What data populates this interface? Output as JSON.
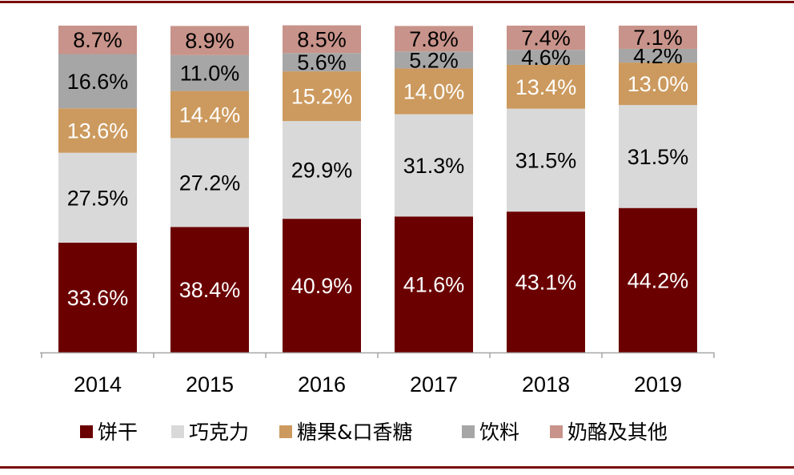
{
  "chart_data": {
    "type": "bar",
    "stacked": true,
    "categories": [
      "2014",
      "2015",
      "2016",
      "2017",
      "2018",
      "2019"
    ],
    "ylim": [
      0,
      100
    ],
    "value_suffix": "%",
    "series": [
      {
        "name": "饼干",
        "color": "#6b0000",
        "label_color": "#ffffff",
        "values": [
          33.6,
          38.4,
          40.9,
          41.6,
          43.1,
          44.2
        ]
      },
      {
        "name": "巧克力",
        "color": "#d9d9d9",
        "label_color": "#000000",
        "values": [
          27.5,
          27.2,
          29.9,
          31.3,
          31.5,
          31.5
        ]
      },
      {
        "name": "糖果&口香糖",
        "color": "#cc9a5e",
        "label_color": "#ffffff",
        "values": [
          13.6,
          14.4,
          15.2,
          14.0,
          13.4,
          13.0
        ]
      },
      {
        "name": "饮料",
        "color": "#a6a6a6",
        "label_color": "#000000",
        "values": [
          16.6,
          11.0,
          5.6,
          5.2,
          4.6,
          4.2
        ]
      },
      {
        "name": "奶酪及其他",
        "color": "#c8938a",
        "label_color": "#000000",
        "values": [
          8.7,
          8.9,
          8.5,
          7.8,
          7.4,
          7.1
        ]
      }
    ],
    "legend_position": "bottom",
    "grid": false,
    "title": "",
    "xlabel": "",
    "ylabel": ""
  }
}
